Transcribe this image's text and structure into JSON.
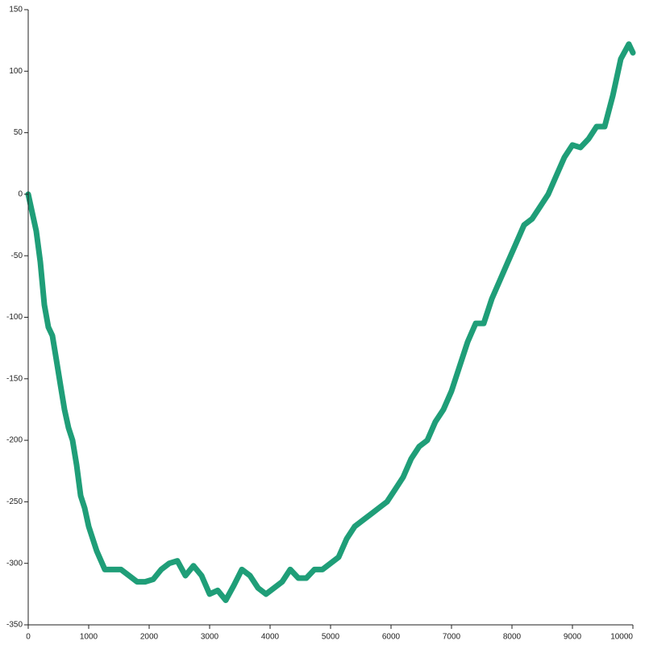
{
  "chart_data": {
    "type": "line",
    "x": [
      0,
      133,
      200,
      267,
      333,
      400,
      467,
      533,
      600,
      667,
      733,
      800,
      867,
      933,
      1000,
      1133,
      1267,
      1400,
      1533,
      1667,
      1800,
      1933,
      2067,
      2200,
      2333,
      2467,
      2600,
      2733,
      2867,
      3000,
      3133,
      3267,
      3400,
      3533,
      3667,
      3800,
      3933,
      4067,
      4200,
      4333,
      4467,
      4600,
      4733,
      4867,
      5000,
      5133,
      5267,
      5400,
      5533,
      5667,
      5800,
      5933,
      6067,
      6200,
      6333,
      6467,
      6600,
      6733,
      6867,
      7000,
      7133,
      7267,
      7400,
      7533,
      7667,
      7800,
      7933,
      8067,
      8200,
      8333,
      8467,
      8600,
      8733,
      8867,
      9000,
      9133,
      9267,
      9400,
      9533,
      9667,
      9800,
      9933,
      10000
    ],
    "series": [
      {
        "color": "#1f9e78",
        "values": [
          0,
          -30,
          -55,
          -90,
          -108,
          -115,
          -135,
          -155,
          -175,
          -190,
          -200,
          -220,
          -245,
          -255,
          -270,
          -290,
          -305,
          -305,
          -305,
          -310,
          -315,
          -315,
          -313,
          -305,
          -300,
          -298,
          -310,
          -302,
          -310,
          -325,
          -322,
          -330,
          -318,
          -305,
          -310,
          -320,
          -325,
          -320,
          -315,
          -305,
          -312,
          -312,
          -305,
          -305,
          -300,
          -295,
          -280,
          -270,
          -265,
          -260,
          -255,
          -250,
          -240,
          -230,
          -215,
          -205,
          -200,
          -185,
          -175,
          -160,
          -140,
          -120,
          -105,
          -105,
          -85,
          -70,
          -55,
          -40,
          -25,
          -20,
          -10,
          0,
          15,
          30,
          40,
          38,
          45,
          55,
          55,
          80,
          110,
          122,
          115
        ]
      }
    ],
    "xlim": [
      0,
      10000
    ],
    "xticks": [
      0,
      1000,
      2000,
      3000,
      4000,
      5000,
      6000,
      7000,
      8000,
      9000,
      10000
    ],
    "ylim": [
      -350,
      150
    ],
    "yticks": [
      -350,
      -300,
      -250,
      -200,
      -150,
      -100,
      -50,
      0,
      50,
      100,
      150
    ]
  }
}
